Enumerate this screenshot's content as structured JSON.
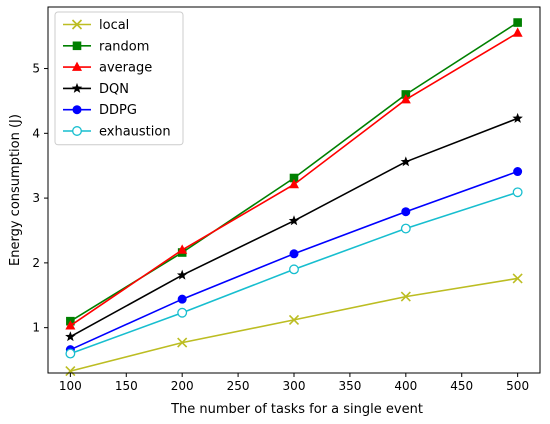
{
  "chart_data": {
    "type": "line",
    "title": "",
    "xlabel": "The number of tasks for a single event",
    "ylabel": "Energy consumption (J)",
    "xlim": [
      80,
      520
    ],
    "ylim": [
      0.3,
      5.95
    ],
    "xticks": [
      100,
      150,
      200,
      250,
      300,
      350,
      400,
      450,
      500
    ],
    "yticks": [
      1,
      2,
      3,
      4,
      5
    ],
    "grid": false,
    "legend_position": "upper-left",
    "x": [
      100,
      200,
      300,
      400,
      500
    ],
    "series": [
      {
        "name": "local",
        "values": [
          0.33,
          0.77,
          1.12,
          1.48,
          1.76
        ],
        "color": "#bcbd22",
        "marker": "x"
      },
      {
        "name": "random",
        "values": [
          1.1,
          2.16,
          3.31,
          4.6,
          5.71
        ],
        "color": "#008000",
        "marker": "square"
      },
      {
        "name": "average",
        "values": [
          1.03,
          2.2,
          3.21,
          4.52,
          5.55
        ],
        "color": "#ff0000",
        "marker": "triangle"
      },
      {
        "name": "DQN",
        "values": [
          0.86,
          1.81,
          2.65,
          3.56,
          4.23
        ],
        "color": "#000000",
        "marker": "star"
      },
      {
        "name": "DDPG",
        "values": [
          0.66,
          1.44,
          2.14,
          2.79,
          3.41
        ],
        "color": "#0000ff",
        "marker": "circle"
      },
      {
        "name": "exhaustion",
        "values": [
          0.6,
          1.23,
          1.9,
          2.53,
          3.09
        ],
        "color": "#17becf",
        "marker": "circle-open"
      }
    ]
  }
}
